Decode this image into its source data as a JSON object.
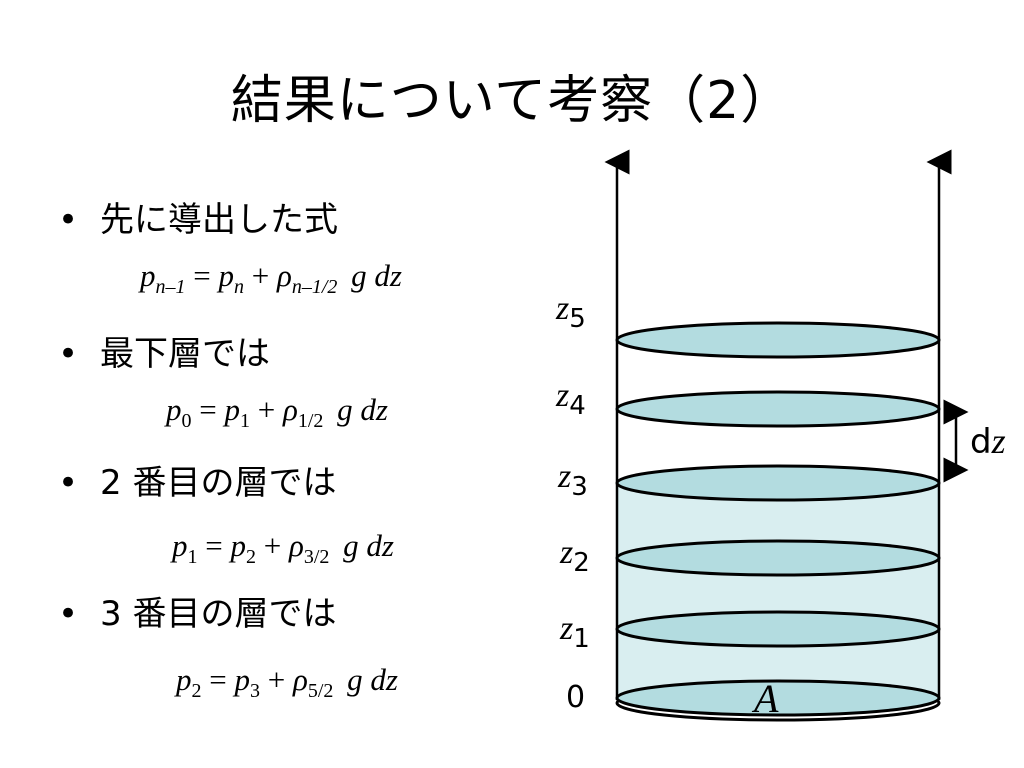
{
  "slide": {
    "title": "結果について考察（2）",
    "bullets": [
      {
        "marker": "•",
        "text": "先に導出した式"
      },
      {
        "marker": "•",
        "text": "最下層では"
      },
      {
        "marker": "•",
        "text": "2 番目の層では"
      },
      {
        "marker": "•",
        "text": "3 番目の層では"
      }
    ],
    "equations": [
      {
        "lhs": "p",
        "lhs_sub": "n–1",
        "eq": "=",
        "rhs": "p",
        "rhs_sub": "n",
        "plus": "+",
        "rho": "ρ",
        "rho_sub": "n–1/2",
        "tail": "g dz"
      },
      {
        "lhs": "p",
        "lhs_sub": "0",
        "eq": "=",
        "rhs": "p",
        "rhs_sub": "1",
        "plus": "+",
        "rho": "ρ",
        "rho_sub": "1/2",
        "tail": "g dz"
      },
      {
        "lhs": "p",
        "lhs_sub": "1",
        "eq": "=",
        "rhs": "p",
        "rhs_sub": "2",
        "plus": "+",
        "rho": "ρ",
        "rho_sub": "3/2",
        "tail": "g dz"
      },
      {
        "lhs": "p",
        "lhs_sub": "2",
        "eq": "=",
        "rhs": "p",
        "rhs_sub": "3",
        "plus": "+",
        "rho": "ρ",
        "rho_sub": "5/2",
        "tail": "g dz"
      }
    ]
  },
  "diagram": {
    "level_labels": [
      {
        "var": "z",
        "sub": "5"
      },
      {
        "var": "z",
        "sub": "4"
      },
      {
        "var": "z",
        "sub": "3"
      },
      {
        "var": "z",
        "sub": "2"
      },
      {
        "var": "z",
        "sub": "1"
      },
      {
        "var": "0",
        "sub": ""
      }
    ],
    "dz_label": {
      "d": "d",
      "z": "z"
    },
    "area_label": "A",
    "colors": {
      "ellipse_fill": "#b3dce0",
      "column_fill": "#d9eef0",
      "stroke": "#000000"
    }
  }
}
